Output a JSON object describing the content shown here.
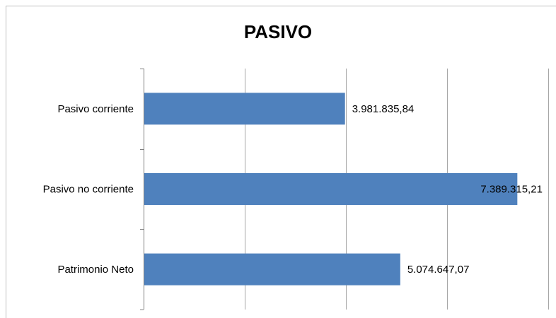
{
  "chart_data": {
    "type": "bar",
    "orientation": "horizontal",
    "title": "PASIVO",
    "categories": [
      "Pasivo corriente",
      "Pasivo no corriente",
      "Patrimonio Neto"
    ],
    "values": [
      3981835.84,
      7389315.21,
      5074647.07
    ],
    "data_labels": [
      "3.981.835,84",
      "7.389.315,21",
      "5.074.647,07"
    ],
    "xlim": [
      0,
      8000000
    ],
    "x_tick_step": 2000000,
    "grid": true,
    "legend": "none",
    "colors": {
      "bar": "#4f81bd",
      "grid": "#a6a6a6",
      "axis": "#7f7f7f"
    }
  }
}
